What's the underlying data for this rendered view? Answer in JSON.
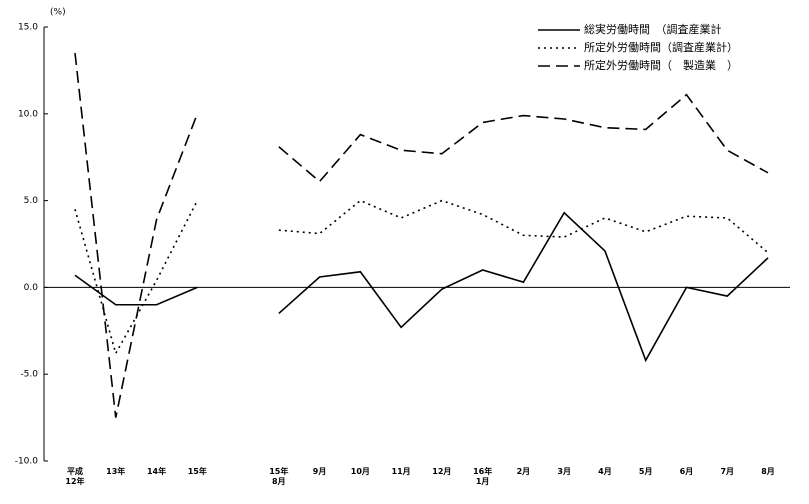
{
  "chart_data": {
    "type": "line",
    "y_label": "(%)",
    "categories": [
      "平成\n12年",
      "13年",
      "14年",
      "15年",
      null,
      "15年\n8月",
      "9月",
      "10月",
      "11月",
      "12月",
      "16年\n1月",
      "2月",
      "3月",
      "4月",
      "5月",
      "6月",
      "7月",
      "8月"
    ],
    "series": [
      {
        "name": "総実労働時間　（調査産業計",
        "color": "#000000",
        "dash": "solid",
        "values": [
          0.7,
          -1.0,
          -1.0,
          0.0,
          null,
          -1.5,
          0.6,
          0.9,
          -2.3,
          -0.1,
          1.0,
          0.3,
          4.3,
          2.1,
          -4.2,
          0.0,
          -0.5,
          1.7
        ]
      },
      {
        "name": "所定外労働時間（調査産業計）",
        "color": "#000000",
        "dash": "dotted",
        "values": [
          4.5,
          -3.8,
          0.4,
          5.0,
          null,
          3.3,
          3.1,
          5.0,
          4.0,
          5.0,
          4.2,
          3.0,
          2.9,
          4.0,
          3.2,
          4.1,
          4.0,
          2.0
        ]
      },
      {
        "name": "所定外労働時間（　製造業　）",
        "color": "#000000",
        "dash": "dashed",
        "values": [
          13.5,
          -7.5,
          3.9,
          10.0,
          null,
          8.1,
          6.1,
          8.8,
          7.9,
          7.7,
          9.5,
          9.9,
          9.7,
          9.2,
          9.1,
          11.1,
          7.9,
          6.6
        ]
      }
    ],
    "ylim": [
      -10,
      15
    ],
    "yticks": [
      {
        "value": -10,
        "label": "-10.0"
      },
      {
        "value": -5,
        "label": "-5.0"
      },
      {
        "value": 0,
        "label": "0.0"
      },
      {
        "value": 5,
        "label": "5.0"
      },
      {
        "value": 10,
        "label": "10.0"
      },
      {
        "value": 15,
        "label": "15.0"
      }
    ],
    "legend": "top-right"
  }
}
